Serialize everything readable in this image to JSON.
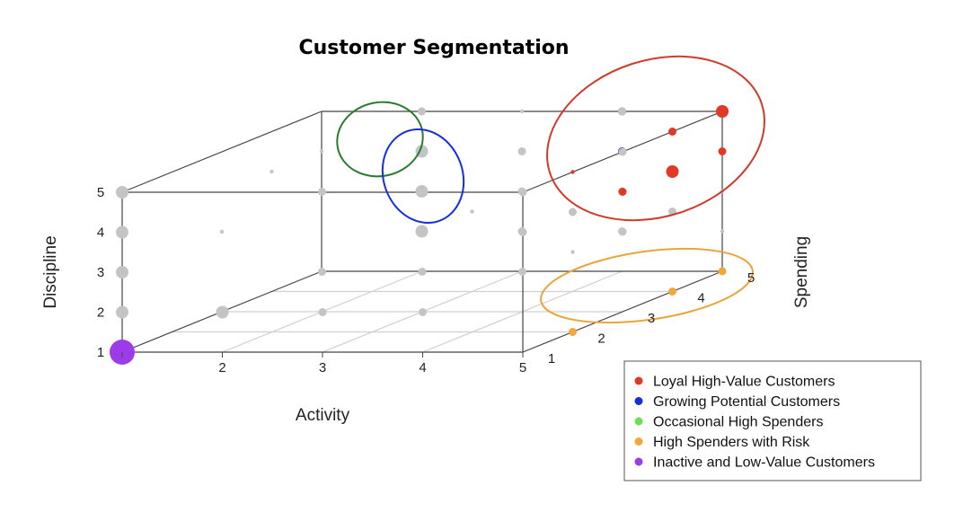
{
  "chart_data": {
    "type": "scatter",
    "subtype": "3d-bubble",
    "title": "Customer Segmentation",
    "axes": {
      "x": {
        "label": "Activity",
        "ticks": [
          "1",
          "2",
          "3",
          "4",
          "5"
        ],
        "range": [
          1,
          5
        ]
      },
      "y": {
        "label": "Spending",
        "ticks": [
          "1",
          "2",
          "3",
          "4",
          "5"
        ],
        "range": [
          1,
          5
        ]
      },
      "z": {
        "label": "Discipline",
        "ticks": [
          "1",
          "2",
          "3",
          "4",
          "5"
        ],
        "range": [
          1,
          5
        ]
      }
    },
    "grid": "floor",
    "legend": {
      "placement": "bottom-right",
      "entries": [
        {
          "label": "Loyal High-Value Customers",
          "color": "#e03a25"
        },
        {
          "label": "Growing Potential Customers",
          "color": "#1530d8"
        },
        {
          "label": "Occasional High Spenders",
          "color": "#6fdc55"
        },
        {
          "label": "High Spenders with Risk",
          "color": "#f0a83a"
        },
        {
          "label": "Inactive and Low-Value Customers",
          "color": "#9d3be8"
        }
      ]
    },
    "segment_regions": [
      {
        "segment": "Occasional High Spenders",
        "outline": "#2a7a2e"
      },
      {
        "segment": "Growing Potential Customers",
        "outline": "#1530d8"
      },
      {
        "segment": "Loyal High-Value Customers",
        "outline": "#d03a2a"
      },
      {
        "segment": "High Spenders with Risk",
        "outline": "#eba43a"
      }
    ],
    "points": [
      {
        "x": 1,
        "y": 1,
        "z": 1,
        "size": 5,
        "segment": "Inactive and Low-Value Customers"
      },
      {
        "x": 1,
        "y": 1,
        "z": 2,
        "size": 3,
        "segment": null
      },
      {
        "x": 1,
        "y": 1,
        "z": 3,
        "size": 3,
        "segment": null
      },
      {
        "x": 1,
        "y": 1,
        "z": 4,
        "size": 3,
        "segment": null
      },
      {
        "x": 1,
        "y": 1,
        "z": 5,
        "size": 3,
        "segment": null
      },
      {
        "x": 1,
        "y": 5,
        "z": 3,
        "size": 1,
        "segment": null
      },
      {
        "x": 1,
        "y": 5,
        "z": 4,
        "size": 1,
        "segment": null
      },
      {
        "x": 2,
        "y": 5,
        "z": 2,
        "size": 3,
        "segment": null
      },
      {
        "x": 2,
        "y": 5,
        "z": 3,
        "size": 3,
        "segment": null
      },
      {
        "x": 2,
        "y": 5,
        "z": 4,
        "size": 3,
        "segment": null
      },
      {
        "x": 2,
        "y": 5,
        "z": 5,
        "size": 2,
        "segment": null
      },
      {
        "x": 2,
        "y": 1,
        "z": 2,
        "size": 3,
        "segment": null
      },
      {
        "x": 3,
        "y": 5,
        "z": 2,
        "size": 2,
        "segment": null
      },
      {
        "x": 3,
        "y": 5,
        "z": 3,
        "size": 2,
        "segment": null
      },
      {
        "x": 3,
        "y": 5,
        "z": 4,
        "size": 2,
        "segment": null
      },
      {
        "x": 3,
        "y": 5,
        "z": 5,
        "size": 1,
        "segment": null
      },
      {
        "x": 3,
        "y": 1,
        "z": 2,
        "size": 2,
        "segment": null
      },
      {
        "x": 4,
        "y": 5,
        "z": 2,
        "size": 2,
        "segment": null
      },
      {
        "x": 4,
        "y": 5,
        "z": 3,
        "size": 2,
        "segment": null
      },
      {
        "x": 4,
        "y": 5,
        "z": 4,
        "size": 2,
        "segment": "Growing Potential Customers"
      },
      {
        "x": 4,
        "y": 5,
        "z": 5,
        "size": 2,
        "segment": "Growing Potential Customers"
      },
      {
        "x": 4,
        "y": 1,
        "z": 2,
        "size": 2,
        "segment": null
      },
      {
        "x": 5,
        "y": 5,
        "z": 2,
        "size": 1,
        "segment": null
      },
      {
        "x": 5,
        "y": 5,
        "z": 3,
        "size": 1,
        "segment": null
      },
      {
        "x": 5,
        "y": 5,
        "z": 4,
        "size": 1,
        "segment": null
      },
      {
        "x": 5,
        "y": 5,
        "z": 5,
        "size": 1,
        "segment": null
      },
      {
        "x": 1,
        "y": 3,
        "z": 3,
        "size": 1,
        "segment": null
      },
      {
        "x": 2,
        "y": 3,
        "z": 2,
        "size": 2,
        "segment": null
      },
      {
        "x": 2,
        "y": 3,
        "z": 4,
        "size": 2,
        "segment": null
      },
      {
        "x": 3,
        "y": 3,
        "z": 2,
        "size": 2,
        "segment": null
      },
      {
        "x": 3,
        "y": 3,
        "z": 4,
        "size": 1,
        "segment": null
      },
      {
        "x": 4,
        "y": 3,
        "z": 2,
        "size": 2,
        "segment": null
      },
      {
        "x": 4,
        "y": 3,
        "z": 4,
        "size": 2,
        "segment": null
      },
      {
        "x": 1,
        "y": 4,
        "z": 4,
        "size": 1,
        "segment": null
      },
      {
        "x": 3,
        "y": 4,
        "z": 3,
        "size": 1,
        "segment": null
      },
      {
        "x": 5,
        "y": 4,
        "z": 3,
        "size": 2,
        "segment": null
      },
      {
        "x": 5,
        "y": 4,
        "z": 4,
        "size": 1,
        "segment": null
      },
      {
        "x": 5,
        "y": 1,
        "z": 5,
        "size": 2,
        "segment": null
      },
      {
        "x": 5,
        "y": 2,
        "z": 5,
        "size": 1,
        "segment": "Loyal High-Value Customers"
      },
      {
        "x": 5,
        "y": 3,
        "z": 5,
        "size": 2,
        "segment": null
      },
      {
        "x": 5,
        "y": 4,
        "z": 5,
        "size": 2,
        "segment": "Loyal High-Value Customers"
      },
      {
        "x": 5,
        "y": 5,
        "z": 5,
        "size": 3,
        "segment": "Loyal High-Value Customers"
      },
      {
        "x": 4,
        "y": 5,
        "z": 5,
        "size": 2,
        "segment": null
      },
      {
        "x": 5,
        "y": 3,
        "z": 4,
        "size": 2,
        "segment": "Loyal High-Value Customers"
      },
      {
        "x": 5,
        "y": 5,
        "z": 4,
        "size": 2,
        "segment": "Loyal High-Value Customers"
      },
      {
        "x": 5,
        "y": 4,
        "z": 4,
        "size": 3,
        "segment": "Loyal High-Value Customers"
      },
      {
        "x": 5,
        "y": 2,
        "z": 4,
        "size": 2,
        "segment": null
      },
      {
        "x": 5,
        "y": 1,
        "z": 4,
        "size": 2,
        "segment": null
      },
      {
        "x": 5,
        "y": 3,
        "z": 3,
        "size": 2,
        "segment": null
      },
      {
        "x": 5,
        "y": 2,
        "z": 3,
        "size": 1,
        "segment": null
      },
      {
        "x": 5,
        "y": 4,
        "z": 4,
        "size": 2,
        "segment": "Loyal High-Value Customers"
      },
      {
        "x": 5,
        "y": 5,
        "z": 1,
        "size": 2,
        "segment": "High Spenders with Risk"
      },
      {
        "x": 5,
        "y": 4,
        "z": 1,
        "size": 2,
        "segment": "High Spenders with Risk"
      },
      {
        "x": 5,
        "y": 2,
        "z": 1,
        "size": 2,
        "segment": "High Spenders with Risk"
      }
    ]
  }
}
